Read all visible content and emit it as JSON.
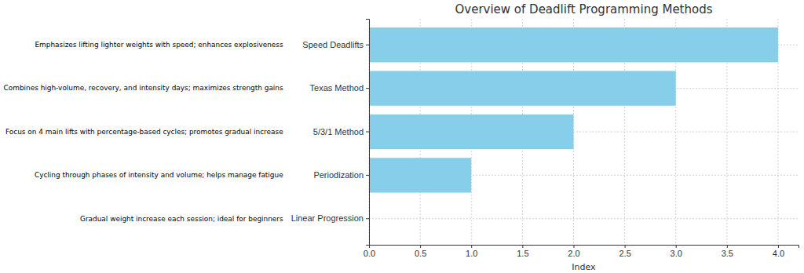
{
  "chart_data": {
    "type": "bar",
    "orientation": "horizontal",
    "title": "Overview of Deadlift Programming Methods",
    "x_label": "Index",
    "categories": [
      "Linear Progression",
      "Periodization",
      "5/3/1 Method",
      "Texas Method",
      "Speed Deadlifts"
    ],
    "values": [
      0,
      1,
      2,
      3,
      4
    ],
    "annotations": [
      "Gradual weight increase each session; ideal for beginners",
      "Cycling through phases of intensity and volume; helps manage fatigue",
      "Focus on 4 main lifts with percentage-based cycles; promotes gradual increase",
      "Combines high-volume, recovery, and intensity days; maximizes strength gains",
      "Emphasizes lifting lighter weights with speed; enhances explosiveness"
    ],
    "color": "#87ceeb",
    "xlim": [
      0,
      4.2
    ],
    "xticks": [
      {
        "value": 0,
        "label": "0.0"
      },
      {
        "value": 0.5,
        "label": "0.5"
      },
      {
        "value": 1,
        "label": "1.0"
      },
      {
        "value": 1.5,
        "label": "1.5"
      },
      {
        "value": 2,
        "label": "2.0"
      },
      {
        "value": 2.5,
        "label": "2.5"
      },
      {
        "value": 3,
        "label": "3.0"
      },
      {
        "value": 3.5,
        "label": "3.5"
      },
      {
        "value": 4,
        "label": "4.0"
      }
    ],
    "grid": true
  }
}
